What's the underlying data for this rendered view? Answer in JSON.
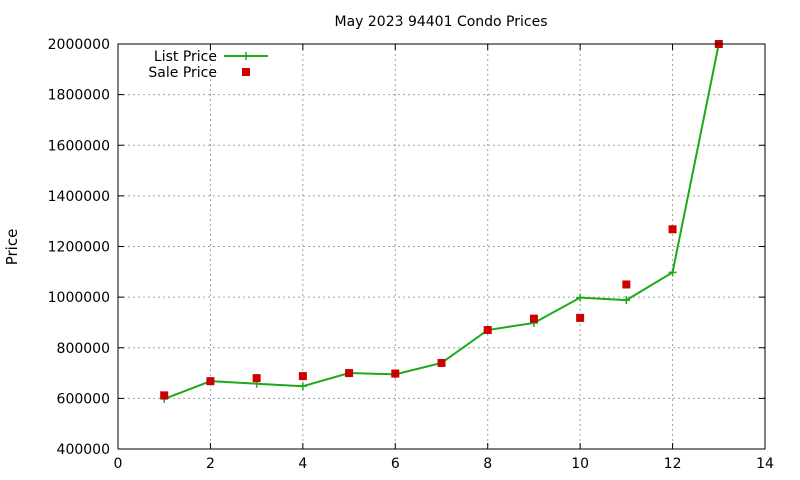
{
  "chart_data": {
    "type": "line",
    "title": "May 2023 94401 Condo Prices",
    "xlabel": "",
    "ylabel": "Price",
    "xlim": [
      0,
      14
    ],
    "ylim": [
      400000,
      2000000
    ],
    "xticks": [
      0,
      2,
      4,
      6,
      8,
      10,
      12,
      14
    ],
    "yticks": [
      400000,
      600000,
      800000,
      1000000,
      1200000,
      1400000,
      1600000,
      1800000,
      2000000
    ],
    "grid": true,
    "legend": "top-left",
    "series": [
      {
        "name": "List Price",
        "style": "line-with-plus-markers",
        "color": "#1aaa1a",
        "x": [
          1,
          2,
          3,
          4,
          5,
          6,
          7,
          8,
          9,
          10,
          11,
          12,
          13
        ],
        "values": [
          598000,
          668000,
          658000,
          648000,
          700000,
          695000,
          740000,
          870000,
          898000,
          998000,
          988000,
          1098000,
          2000000
        ]
      },
      {
        "name": "Sale Price",
        "style": "square-markers",
        "color": "#cc0000",
        "x": [
          1,
          2,
          3,
          4,
          5,
          6,
          7,
          8,
          9,
          10,
          11,
          12,
          13
        ],
        "values": [
          612000,
          668000,
          680000,
          688000,
          700000,
          698000,
          740000,
          870000,
          915000,
          918000,
          1050000,
          1268000,
          2000000
        ]
      }
    ]
  }
}
